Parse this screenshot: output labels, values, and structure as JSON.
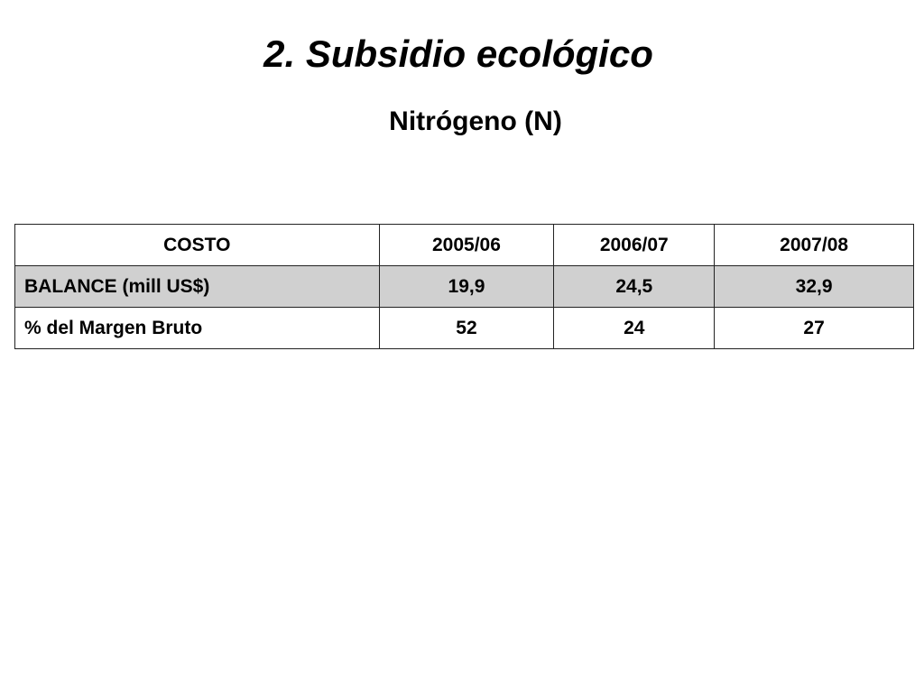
{
  "header": {
    "title": "2. Subsidio ecológico",
    "subtitle": "Nitrógeno (N)"
  },
  "table": {
    "columns": [
      "COSTO",
      "2005/06",
      "2006/07",
      "2007/08"
    ],
    "rows": [
      [
        "BALANCE (mill US$)",
        "19,9",
        "24,5",
        "32,9"
      ],
      [
        "% del Margen Bruto",
        52,
        24,
        27
      ]
    ]
  }
}
